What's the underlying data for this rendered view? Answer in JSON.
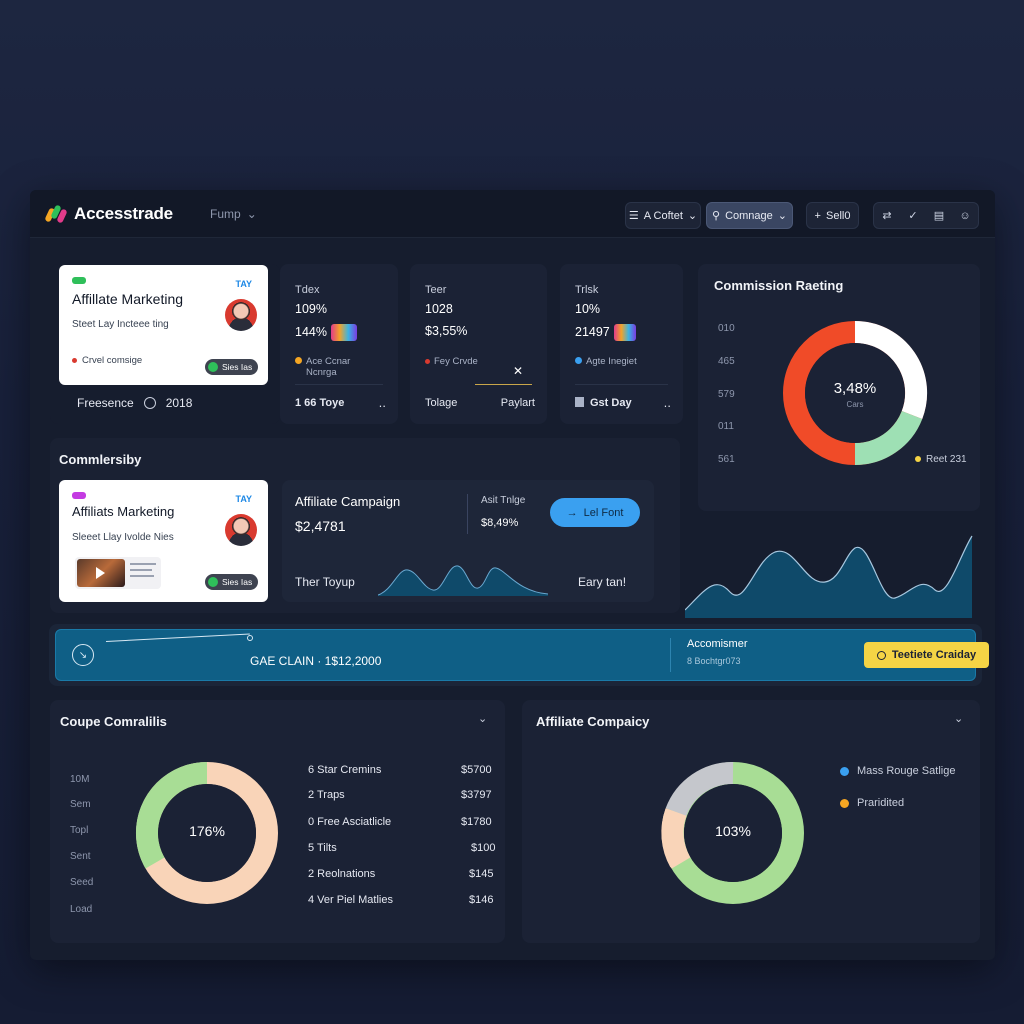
{
  "app": {
    "brand": "Accesstrade",
    "workspace": "Fump",
    "actions": {
      "filter": "A Coftet",
      "search": "Comnage",
      "add": "Sell0"
    }
  },
  "top_card": {
    "tag_left": "",
    "tag_right": "TAY",
    "title": "Affillate Marketing",
    "subtitle": "Steet Lay Incteee ting",
    "status": "Crvel comsige",
    "pill": "Sies Ias",
    "footer_left": "Freesence",
    "footer_right": "2018"
  },
  "stats": [
    {
      "label": "Tdex",
      "v1": "109%",
      "v2": "144%",
      "note1": "Ace Ccnar",
      "note2": "Ncnrga",
      "foot_left": "1 66 Toye",
      "foot_right": "‥"
    },
    {
      "label": "Teer",
      "v1": "1028",
      "v2": "$3,55%",
      "note1": "Fey Crvde",
      "note2": "",
      "foot_left": "Tolage",
      "foot_right": "Paylart"
    },
    {
      "label": "Trlsk",
      "v1": "10%",
      "v2": "21497",
      "note1": "Agte Inegiet",
      "note2": "",
      "foot_left": "Gst Day",
      "foot_right": "‥"
    }
  ],
  "commission_rating": {
    "title": "Commission Raeting",
    "center_value": "3,48%",
    "center_label": "Cars",
    "axis": [
      "010",
      "465",
      "579",
      "011",
      "561"
    ],
    "legend": "Reet 231",
    "colors": {
      "red": "#f04b28",
      "white": "#ffffff",
      "green": "#9ee0b4"
    }
  },
  "commissions": {
    "title": "Commlersiby",
    "card": {
      "tag_right": "TAY",
      "title": "Affiliats Marketing",
      "subtitle": "Sleeet Llay Ivolde Nies",
      "thumb_text": "",
      "pill": "Sies Ias"
    }
  },
  "campaign": {
    "title": "Affiliate Campaign",
    "value": "$2,4781",
    "side_label": "Asit Tnlge",
    "side_value": "$8,49%",
    "button": "Lel Font",
    "bottom_left": "Ther Toyup",
    "bottom_right": "Eary tan!"
  },
  "banner": {
    "main": "GAE CLAIN · 1$12,2000",
    "right_title": "Accomismer",
    "right_sub": "8 Bochtgr073",
    "button": "Teetiete Craiday"
  },
  "coupe": {
    "title": "Coupe Comralilis",
    "center_value": "176%",
    "axis": [
      "10M",
      "Sem",
      "Topl",
      "Sent",
      "Seed",
      "Load"
    ],
    "rows": [
      {
        "name": "6 Star Cremins",
        "value": "$5700"
      },
      {
        "name": "2 Traps",
        "value": "$3797"
      },
      {
        "name": "0 Free Asciatlicle",
        "value": "$1780"
      },
      {
        "name": "5 Tilts",
        "value": "$100"
      },
      {
        "name": "2 Reolnations",
        "value": "$145"
      },
      {
        "name": "4 Ver Piel Matlies",
        "value": "$146"
      }
    ]
  },
  "affiliate_company": {
    "title": "Affiliate Compaicy",
    "center_value": "103%",
    "legend": [
      {
        "label": "Mass Rouge Satlige",
        "color": "#3aa0f0"
      },
      {
        "label": "Praridited",
        "color": "#f5a623"
      }
    ]
  }
}
